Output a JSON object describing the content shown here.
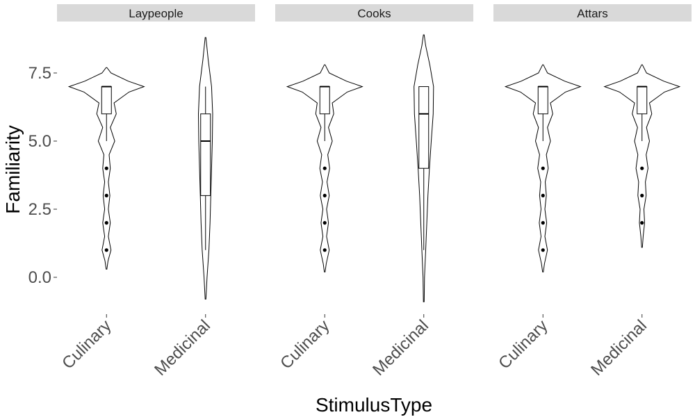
{
  "chart_data": {
    "type": "violin",
    "title": "",
    "xlabel": "StimulusType",
    "ylabel": "Familiarity",
    "yticks": [
      "0.0",
      "2.5",
      "5.0",
      "7.5"
    ],
    "ytick_values": [
      0,
      2.5,
      5,
      7.5
    ],
    "ylim": [
      -1.4,
      9.0
    ],
    "grid": false,
    "categories": [
      "Culinary",
      "Medicinal"
    ],
    "panels": [
      {
        "name": "Laypeople",
        "groups": [
          {
            "category": "Culinary",
            "violin_range": [
              0.3,
              7.7
            ],
            "density": [
              [
                0.3,
                0.01
              ],
              [
                0.6,
                0.04
              ],
              [
                1.0,
                0.12
              ],
              [
                1.5,
                0.05
              ],
              [
                2.0,
                0.1
              ],
              [
                2.5,
                0.05
              ],
              [
                3.0,
                0.09
              ],
              [
                3.5,
                0.05
              ],
              [
                4.0,
                0.1
              ],
              [
                4.5,
                0.07
              ],
              [
                5.0,
                0.22
              ],
              [
                5.5,
                0.1
              ],
              [
                6.0,
                0.26
              ],
              [
                6.4,
                0.2
              ],
              [
                6.8,
                0.6
              ],
              [
                7.0,
                1.0
              ],
              [
                7.2,
                0.58
              ],
              [
                7.5,
                0.12
              ],
              [
                7.7,
                0.01
              ]
            ],
            "box": {
              "q1": 6,
              "median": 7,
              "q3": 7,
              "whisker_low": 5,
              "whisker_high": 7
            },
            "outliers": [
              4,
              3,
              2,
              1
            ]
          },
          {
            "category": "Medicinal",
            "violin_range": [
              -0.8,
              8.8
            ],
            "density": [
              [
                -0.8,
                0.01
              ],
              [
                0.0,
                0.04
              ],
              [
                1.0,
                0.09
              ],
              [
                2.0,
                0.12
              ],
              [
                3.0,
                0.14
              ],
              [
                4.0,
                0.16
              ],
              [
                5.0,
                0.18
              ],
              [
                6.0,
                0.19
              ],
              [
                7.0,
                0.16
              ],
              [
                8.0,
                0.07
              ],
              [
                8.8,
                0.01
              ]
            ],
            "box": {
              "q1": 3,
              "median": 5,
              "q3": 6,
              "whisker_low": 1,
              "whisker_high": 7
            },
            "outliers": []
          }
        ]
      },
      {
        "name": "Cooks",
        "groups": [
          {
            "category": "Culinary",
            "violin_range": [
              0.2,
              7.8
            ],
            "density": [
              [
                0.2,
                0.01
              ],
              [
                0.5,
                0.04
              ],
              [
                1.0,
                0.12
              ],
              [
                1.5,
                0.05
              ],
              [
                2.0,
                0.1
              ],
              [
                2.5,
                0.05
              ],
              [
                3.0,
                0.12
              ],
              [
                3.5,
                0.06
              ],
              [
                4.0,
                0.13
              ],
              [
                4.5,
                0.08
              ],
              [
                5.0,
                0.2
              ],
              [
                5.5,
                0.1
              ],
              [
                6.0,
                0.24
              ],
              [
                6.4,
                0.2
              ],
              [
                6.8,
                0.6
              ],
              [
                7.0,
                1.0
              ],
              [
                7.2,
                0.58
              ],
              [
                7.5,
                0.12
              ],
              [
                7.8,
                0.01
              ]
            ],
            "box": {
              "q1": 6,
              "median": 7,
              "q3": 7,
              "whisker_low": 5,
              "whisker_high": 7
            },
            "outliers": [
              4,
              3,
              2,
              1
            ]
          },
          {
            "category": "Medicinal",
            "violin_range": [
              -0.9,
              8.9
            ],
            "density": [
              [
                -0.9,
                0.01
              ],
              [
                0.0,
                0.02
              ],
              [
                1.0,
                0.05
              ],
              [
                2.0,
                0.08
              ],
              [
                3.0,
                0.11
              ],
              [
                4.0,
                0.15
              ],
              [
                5.0,
                0.2
              ],
              [
                6.0,
                0.25
              ],
              [
                7.0,
                0.26
              ],
              [
                7.8,
                0.16
              ],
              [
                8.5,
                0.05
              ],
              [
                8.9,
                0.01
              ]
            ],
            "box": {
              "q1": 4,
              "median": 6,
              "q3": 7,
              "whisker_low": 1,
              "whisker_high": 7
            },
            "outliers": []
          }
        ]
      },
      {
        "name": "Attars",
        "groups": [
          {
            "category": "Culinary",
            "violin_range": [
              0.2,
              7.8
            ],
            "density": [
              [
                0.2,
                0.01
              ],
              [
                0.5,
                0.04
              ],
              [
                1.0,
                0.12
              ],
              [
                1.5,
                0.05
              ],
              [
                2.0,
                0.1
              ],
              [
                2.5,
                0.05
              ],
              [
                3.0,
                0.09
              ],
              [
                3.5,
                0.06
              ],
              [
                4.0,
                0.14
              ],
              [
                4.5,
                0.09
              ],
              [
                5.0,
                0.2
              ],
              [
                5.5,
                0.12
              ],
              [
                6.0,
                0.26
              ],
              [
                6.4,
                0.2
              ],
              [
                6.8,
                0.6
              ],
              [
                7.0,
                1.0
              ],
              [
                7.2,
                0.58
              ],
              [
                7.5,
                0.12
              ],
              [
                7.8,
                0.01
              ]
            ],
            "box": {
              "q1": 6,
              "median": 7,
              "q3": 7,
              "whisker_low": 5,
              "whisker_high": 7
            },
            "outliers": [
              4,
              3,
              2,
              1
            ]
          },
          {
            "category": "Medicinal",
            "violin_range": [
              1.1,
              7.8
            ],
            "density": [
              [
                1.1,
                0.01
              ],
              [
                1.5,
                0.03
              ],
              [
                2.0,
                0.07
              ],
              [
                2.5,
                0.05
              ],
              [
                3.0,
                0.11
              ],
              [
                3.5,
                0.09
              ],
              [
                4.0,
                0.16
              ],
              [
                4.5,
                0.11
              ],
              [
                5.0,
                0.2
              ],
              [
                5.5,
                0.12
              ],
              [
                6.0,
                0.26
              ],
              [
                6.4,
                0.2
              ],
              [
                6.8,
                0.6
              ],
              [
                7.0,
                1.0
              ],
              [
                7.2,
                0.58
              ],
              [
                7.5,
                0.12
              ],
              [
                7.8,
                0.01
              ]
            ],
            "box": {
              "q1": 6,
              "median": 7,
              "q3": 7,
              "whisker_low": 5,
              "whisker_high": 7
            },
            "outliers": [
              4,
              3,
              2
            ]
          }
        ]
      }
    ]
  }
}
